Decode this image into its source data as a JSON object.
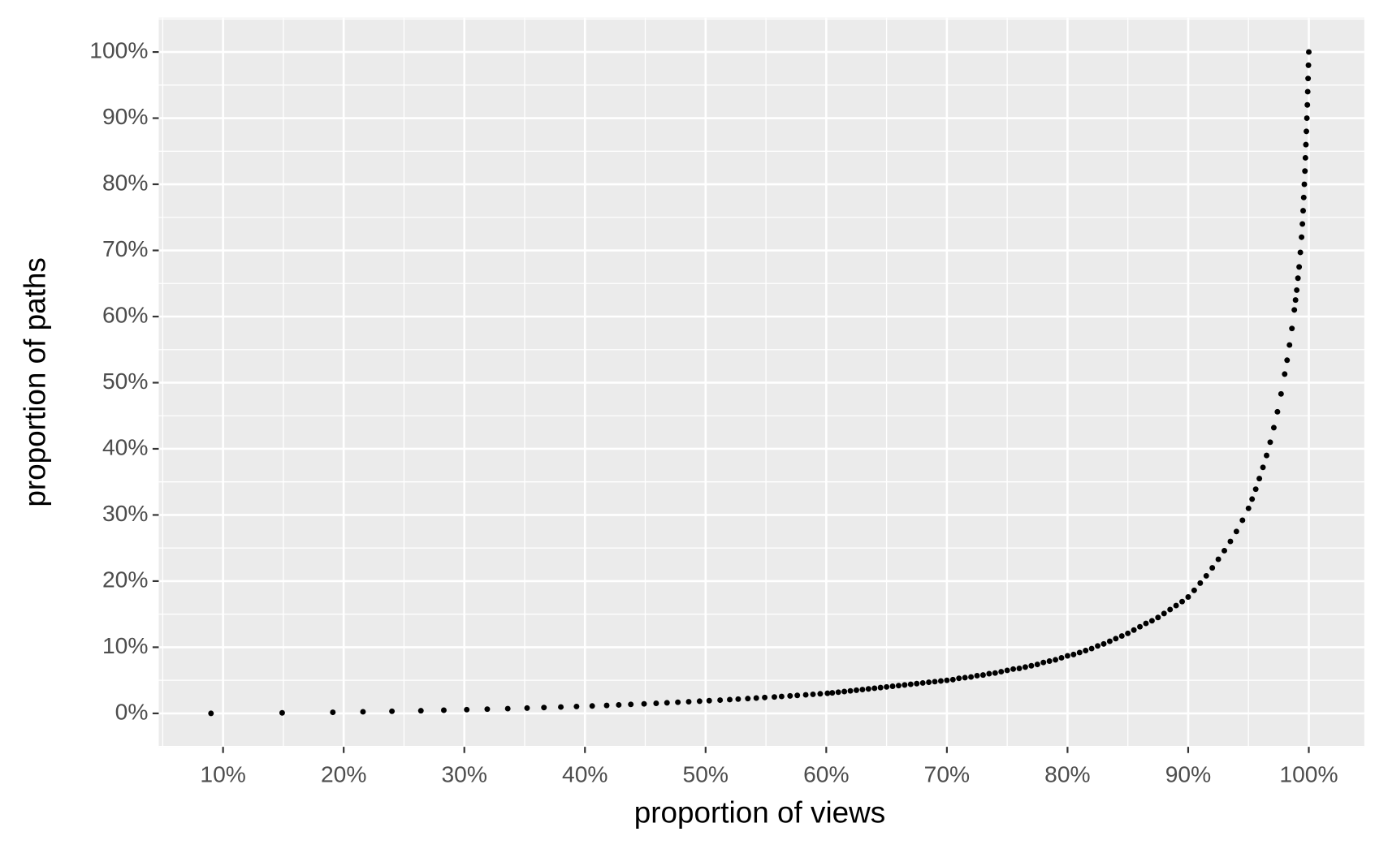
{
  "chart_data": {
    "type": "scatter",
    "xlabel": "proportion of views",
    "ylabel": "proportion of paths",
    "xlim": [
      4.67,
      104.6
    ],
    "ylim": [
      -5.06,
      105.2
    ],
    "xticks": [
      {
        "value": 10,
        "label": "10%"
      },
      {
        "value": 20,
        "label": "20%"
      },
      {
        "value": 30,
        "label": "30%"
      },
      {
        "value": 40,
        "label": "40%"
      },
      {
        "value": 50,
        "label": "50%"
      },
      {
        "value": 60,
        "label": "60%"
      },
      {
        "value": 70,
        "label": "70%"
      },
      {
        "value": 80,
        "label": "80%"
      },
      {
        "value": 90,
        "label": "90%"
      },
      {
        "value": 100,
        "label": "100%"
      }
    ],
    "yticks": [
      {
        "value": 0,
        "label": "0%"
      },
      {
        "value": 10,
        "label": "10%"
      },
      {
        "value": 20,
        "label": "20%"
      },
      {
        "value": 30,
        "label": "30%"
      },
      {
        "value": 40,
        "label": "40%"
      },
      {
        "value": 50,
        "label": "50%"
      },
      {
        "value": 60,
        "label": "60%"
      },
      {
        "value": 70,
        "label": "70%"
      },
      {
        "value": 80,
        "label": "80%"
      },
      {
        "value": 90,
        "label": "90%"
      },
      {
        "value": 100,
        "label": "100%"
      }
    ],
    "grid": true,
    "color": "#000000",
    "x": [
      9.0,
      14.9,
      19.1,
      21.6,
      24.0,
      26.4,
      28.3,
      30.2,
      31.9,
      33.6,
      35.2,
      36.6,
      38.0,
      39.3,
      40.6,
      41.8,
      42.8,
      43.8,
      44.9,
      45.9,
      46.8,
      47.7,
      48.6,
      49.5,
      50.3,
      51.2,
      52.0,
      52.7,
      53.5,
      54.2,
      54.9,
      55.7,
      56.3,
      57.0,
      57.6,
      58.3,
      58.9,
      59.5,
      60.1,
      60.5,
      61,
      61.5,
      62,
      62.5,
      63,
      63.5,
      64,
      64.5,
      65,
      65.5,
      66,
      66.5,
      67,
      67.5,
      68,
      68.5,
      69,
      69.5,
      70,
      70.5,
      71,
      71.5,
      72,
      72.5,
      73,
      73.5,
      74,
      74.5,
      75,
      75.5,
      76,
      76.5,
      77,
      77.5,
      78,
      78.5,
      79,
      79.5,
      80,
      80.5,
      81,
      81.5,
      82,
      82.5,
      83,
      83.5,
      84,
      84.5,
      85,
      85.5,
      86,
      86.5,
      87,
      87.5,
      88,
      88.5,
      89,
      89.5,
      90,
      90.5,
      91,
      91.5,
      92,
      92.5,
      93,
      93.5,
      94,
      94.5,
      95,
      95.3,
      95.6,
      95.9,
      96.2,
      96.5,
      96.8,
      97.1,
      97.4,
      97.7,
      98,
      98.2,
      98.4,
      98.6,
      98.8,
      98.9,
      99,
      99.1,
      99.2,
      99.3,
      99.4,
      99.47,
      99.53,
      99.58,
      99.63,
      99.68,
      99.72,
      99.76,
      99.8,
      99.84,
      99.88,
      99.91,
      99.94,
      99.97,
      100
    ],
    "values": [
      0,
      0.08,
      0.16,
      0.24,
      0.32,
      0.4,
      0.48,
      0.56,
      0.64,
      0.72,
      0.8,
      0.88,
      0.96,
      1.04,
      1.12,
      1.2,
      1.28,
      1.36,
      1.44,
      1.52,
      1.6,
      1.68,
      1.76,
      1.84,
      1.92,
      2.0,
      2.08,
      2.16,
      2.24,
      2.32,
      2.4,
      2.48,
      2.56,
      2.64,
      2.72,
      2.8,
      2.88,
      2.96,
      3.04,
      3.1,
      3.2,
      3.3,
      3.4,
      3.5,
      3.6,
      3.7,
      3.8,
      3.9,
      4.0,
      4.1,
      4.2,
      4.3,
      4.4,
      4.5,
      4.6,
      4.7,
      4.8,
      4.9,
      5.0,
      5.1,
      5.3,
      5.4,
      5.5,
      5.7,
      5.8,
      6.0,
      6.1,
      6.3,
      6.5,
      6.7,
      6.8,
      7.0,
      7.2,
      7.4,
      7.7,
      7.9,
      8.1,
      8.4,
      8.7,
      8.9,
      9.2,
      9.5,
      9.8,
      10.2,
      10.5,
      10.9,
      11.3,
      11.7,
      12.1,
      12.6,
      13.1,
      13.6,
      14.0,
      14.5,
      15.1,
      15.7,
      16.3,
      16.9,
      17.6,
      18.6,
      19.7,
      20.8,
      22.0,
      23.3,
      24.6,
      26.0,
      27.5,
      29.2,
      31.0,
      32.4,
      33.9,
      35.5,
      37.2,
      39.0,
      41.0,
      43.2,
      45.6,
      48.3,
      51.3,
      53.4,
      55.7,
      58.2,
      61.0,
      62.5,
      64.0,
      65.8,
      67.5,
      69.7,
      72.0,
      74.0,
      76.0,
      78.0,
      80.0,
      82.0,
      84.0,
      86.0,
      88.0,
      90.0,
      92.0,
      94.0,
      96.0,
      98.0,
      100.0
    ]
  }
}
